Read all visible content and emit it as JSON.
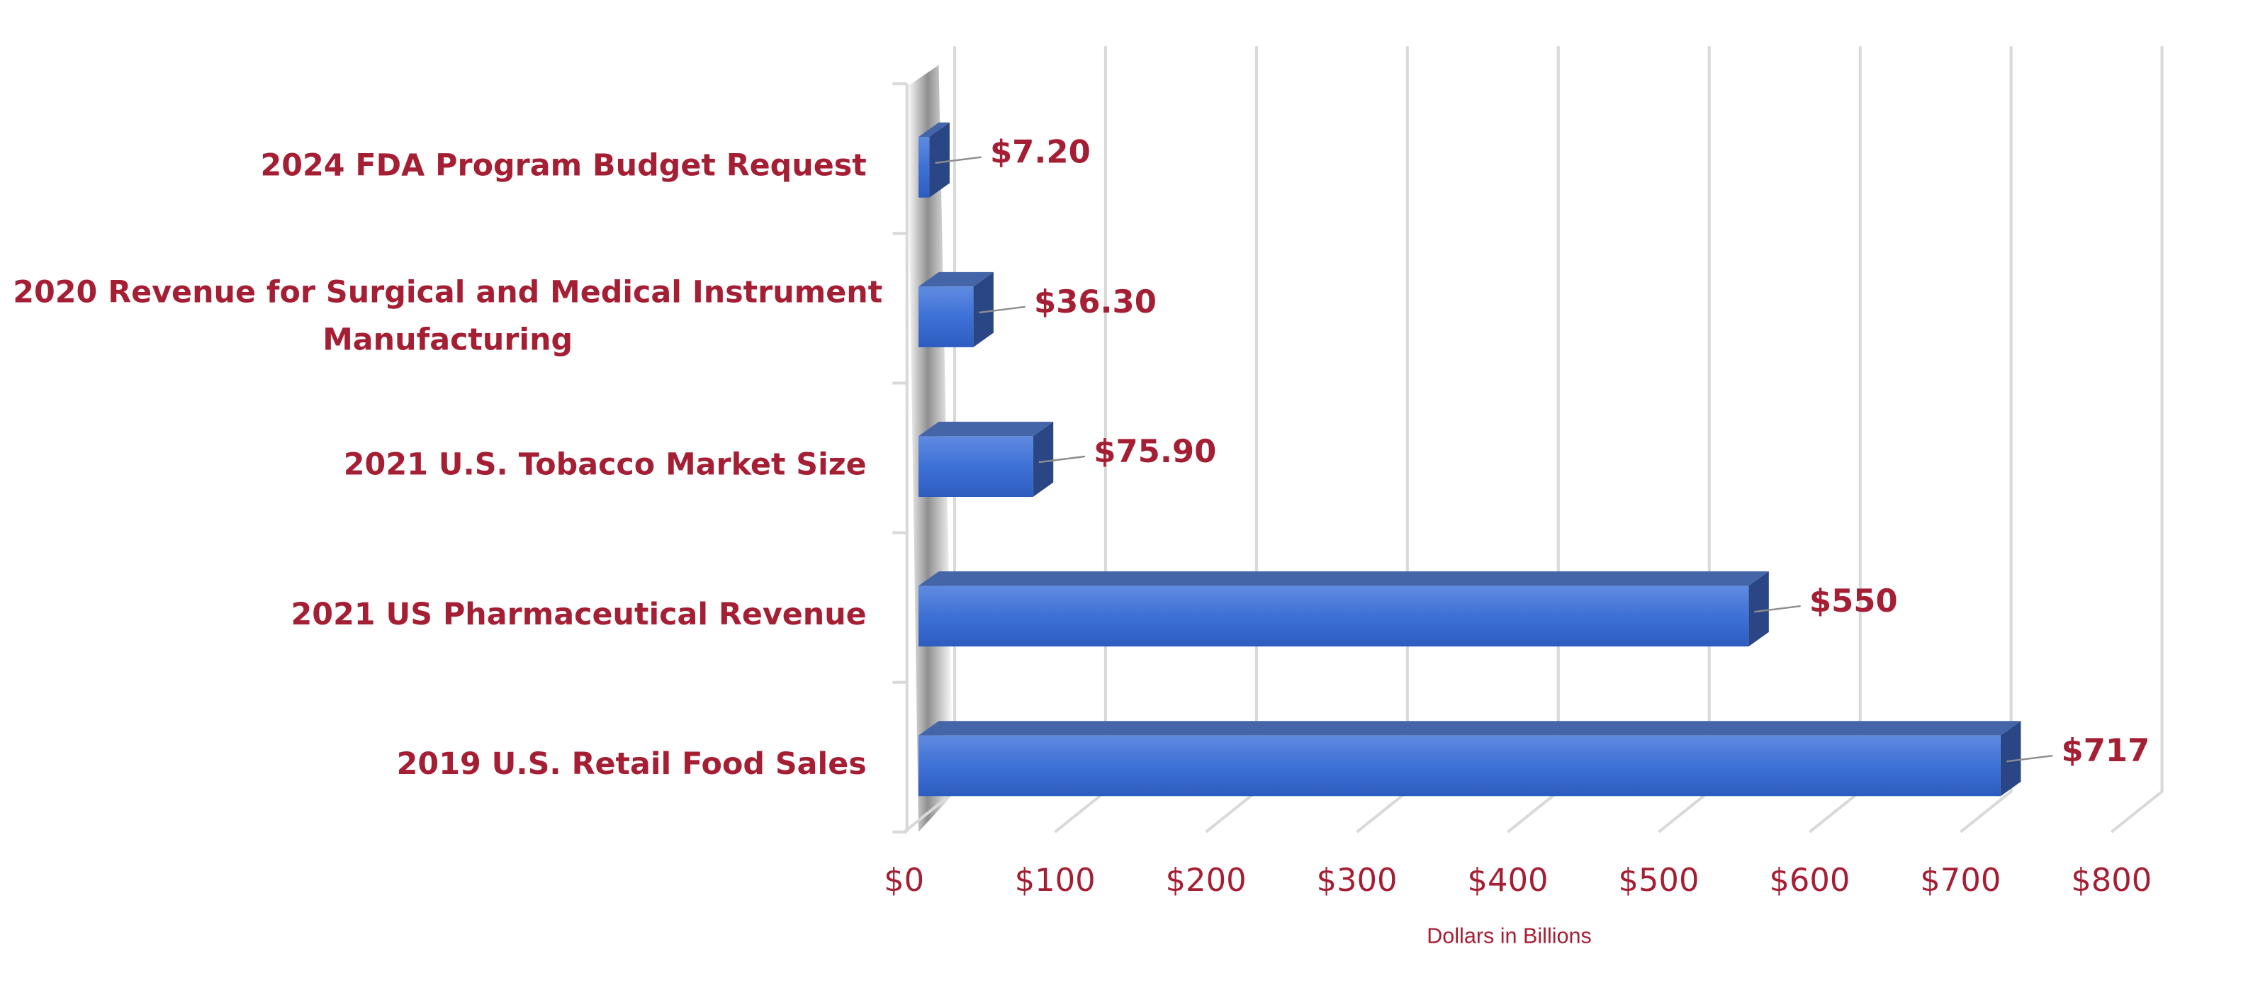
{
  "chart_data": {
    "type": "bar",
    "orientation": "horizontal",
    "x_axis_label": "Dollars in Billions",
    "categories": [
      "2024 FDA Program Budget Request",
      "2020 Revenue for Surgical and Medical Instrument\nManufacturing",
      "2021 U.S. Tobacco Market Size",
      "2021 US Pharmaceutical Revenue",
      "2019 U.S. Retail Food Sales"
    ],
    "values": [
      7.2,
      36.3,
      75.9,
      550,
      717
    ],
    "value_labels": [
      "$7.20",
      "$36.30",
      "$75.90",
      "$550",
      "$717"
    ],
    "color": "#3a6fd3",
    "xlim": [
      0,
      800
    ],
    "xticks": [
      {
        "value": 0,
        "label": "$0"
      },
      {
        "value": 100,
        "label": "$100"
      },
      {
        "value": 200,
        "label": "$200"
      },
      {
        "value": 300,
        "label": "$300"
      },
      {
        "value": 400,
        "label": "$400"
      },
      {
        "value": 500,
        "label": "$500"
      },
      {
        "value": 600,
        "label": "$600"
      },
      {
        "value": 700,
        "label": "$700"
      },
      {
        "value": 800,
        "label": "$800"
      }
    ],
    "grid": true
  }
}
